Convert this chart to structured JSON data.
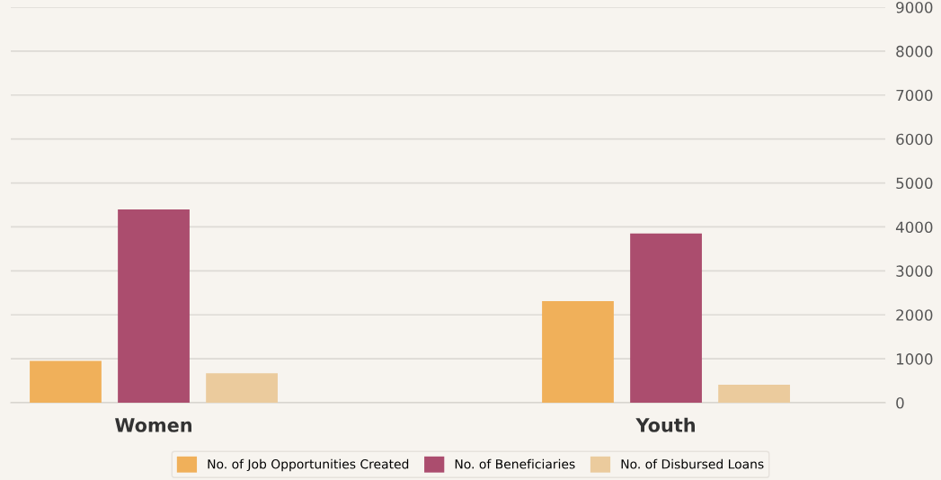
{
  "chart_data": {
    "type": "bar",
    "categories": [
      "Women",
      "Youth"
    ],
    "series": [
      {
        "name": "No. of Job Opportunities Created",
        "color": "#f0b05a",
        "values": [
          950,
          2310
        ]
      },
      {
        "name": "No. of Beneficiaries",
        "color": "#ab4d6e",
        "values": [
          4400,
          3850
        ]
      },
      {
        "name": "No. of Disbursed Loans",
        "color": "#ebcb9d",
        "values": [
          670,
          410
        ]
      }
    ],
    "ylim": [
      0,
      9000
    ],
    "yticks": [
      0,
      1000,
      2000,
      3000,
      4000,
      5000,
      6000,
      7000,
      8000,
      9000
    ],
    "grid": "y",
    "legend": "bottom"
  }
}
